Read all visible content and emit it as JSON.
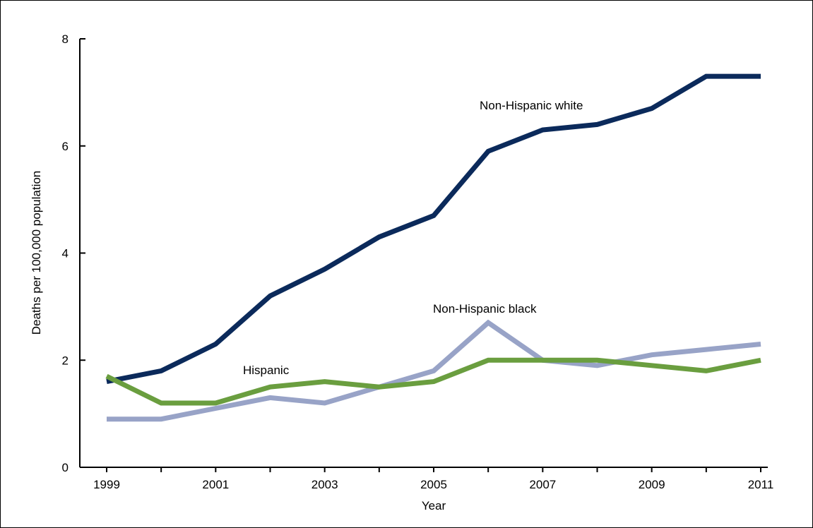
{
  "chart_data": {
    "type": "line",
    "title": "",
    "xlabel": "Year",
    "ylabel": "Deaths per 100,000 population",
    "x": [
      1999,
      2000,
      2001,
      2002,
      2003,
      2004,
      2005,
      2006,
      2007,
      2008,
      2009,
      2010,
      2011
    ],
    "x_ticks": [
      "1999",
      "2001",
      "2003",
      "2005",
      "2007",
      "2009",
      "2011"
    ],
    "y_ticks": [
      "0",
      "2",
      "4",
      "6",
      "8"
    ],
    "xlim": [
      1999,
      2011
    ],
    "ylim": [
      0,
      8
    ],
    "grid": false,
    "legend": "inline labels",
    "series": [
      {
        "name": "Non-Hispanic white",
        "color": "#0b2a5b",
        "values": [
          1.6,
          1.8,
          2.3,
          3.2,
          3.7,
          4.3,
          4.7,
          5.9,
          6.3,
          6.4,
          6.7,
          7.3,
          7.3
        ]
      },
      {
        "name": "Non-Hispanic black",
        "color": "#98a3c7",
        "values": [
          0.9,
          0.9,
          1.1,
          1.3,
          1.2,
          1.5,
          1.8,
          2.7,
          2.0,
          1.9,
          2.1,
          2.2,
          2.3
        ]
      },
      {
        "name": "Hispanic",
        "color": "#6a9e3f",
        "values": [
          1.7,
          1.2,
          1.2,
          1.5,
          1.6,
          1.5,
          1.6,
          2.0,
          2.0,
          2.0,
          1.9,
          1.8,
          2.0
        ]
      }
    ]
  }
}
